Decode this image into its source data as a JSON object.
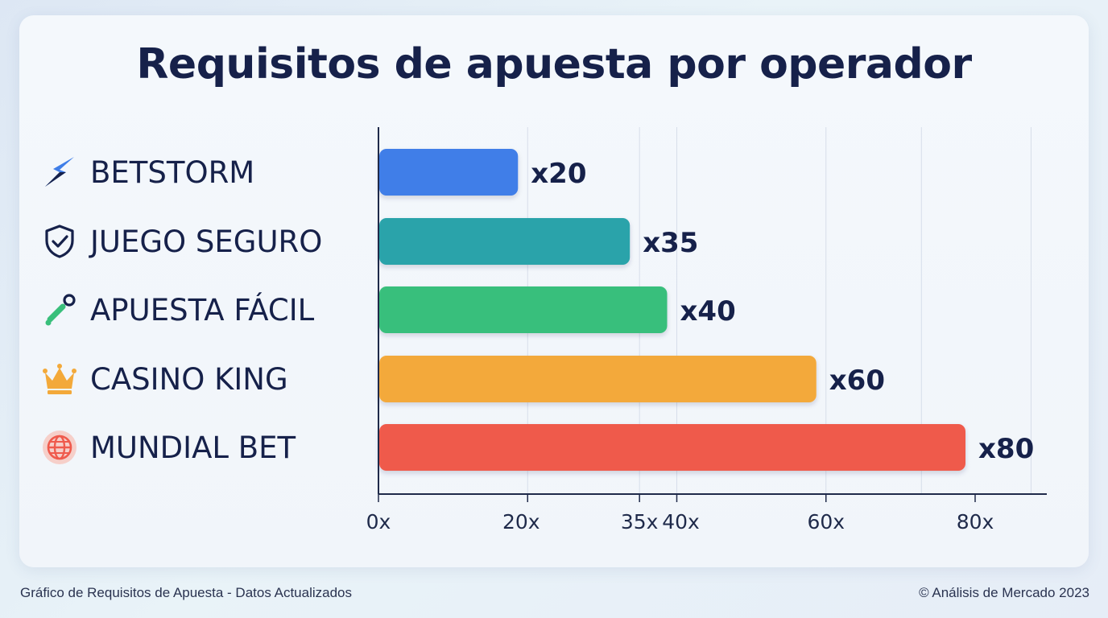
{
  "chart_data": {
    "type": "bar",
    "orientation": "horizontal",
    "title": "Requisitos de apuesta por operador",
    "categories": [
      "BETSTORM",
      "JUEGO SEGURO",
      "APUESTA FÁCIL",
      "CASINO KING",
      "MUNDIAL BET"
    ],
    "values": [
      20,
      35,
      40,
      60,
      80
    ],
    "data_labels": [
      "x20",
      "x35",
      "x40",
      "x60",
      "x80"
    ],
    "category_icons": [
      "lightning-icon",
      "shield-check-icon",
      "pen-link-icon",
      "crown-icon",
      "globe-icon"
    ],
    "bar_colors": [
      "#3f7ee8",
      "#29a3aa",
      "#39bf7b",
      "#f3a93a",
      "#ef5a4c"
    ],
    "xticks": [
      0,
      20,
      35,
      40,
      60,
      80
    ],
    "xtick_labels": [
      "0x",
      "20x",
      "35x",
      "40x",
      "60x",
      "80x"
    ],
    "xlim": [
      0,
      90
    ],
    "xlabel": "",
    "ylabel": "",
    "grid": "vertical",
    "legend": "none"
  },
  "footer": {
    "left": "Gráfico de Requisitos de Apuesta - Datos Actualizados",
    "right": "© Análisis de Mercado 2023"
  },
  "colors": {
    "title": "#16214a",
    "axis": "#1f2a4a",
    "grid": "#d7deea"
  }
}
